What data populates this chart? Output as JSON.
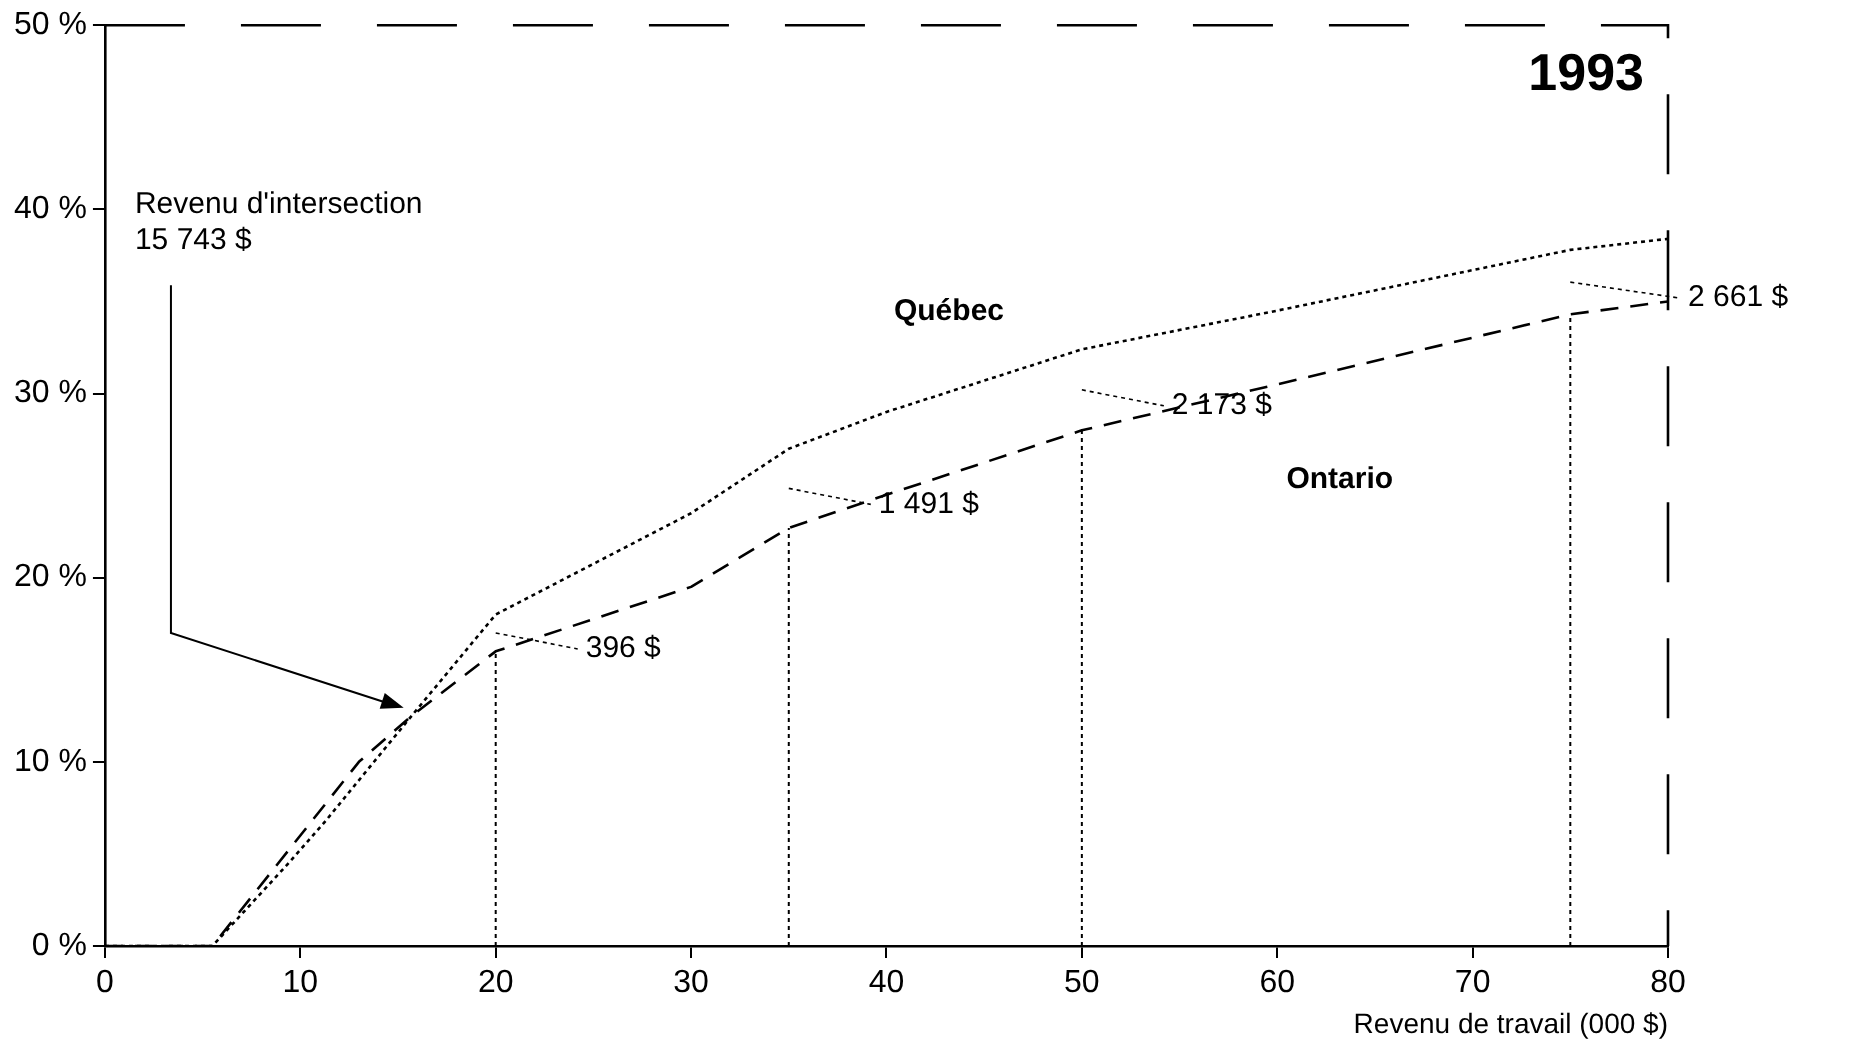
{
  "chart_data": {
    "type": "line",
    "title": "1993",
    "xlabel": "Revenu de travail (000 $)",
    "xlim": [
      0,
      80
    ],
    "xticks": [
      0,
      10,
      20,
      30,
      40,
      50,
      60,
      70,
      80
    ],
    "ylim": [
      0,
      50
    ],
    "yticks": [
      {
        "value": 0,
        "label": "0 %"
      },
      {
        "value": 10,
        "label": "10 %"
      },
      {
        "value": 20,
        "label": "20 %"
      },
      {
        "value": 30,
        "label": "30 %"
      },
      {
        "value": 40,
        "label": "40 %"
      },
      {
        "value": 50,
        "label": "50 %"
      }
    ],
    "grid": false,
    "legend": false,
    "marker": "none",
    "series": [
      {
        "name": "Québec",
        "color": "#000000",
        "line_style": "dotted",
        "x": [
          0,
          5.5,
          9.4,
          11.3,
          15.7,
          20,
          30,
          35,
          40,
          50,
          60,
          75,
          80
        ],
        "values": [
          0,
          0,
          4.5,
          6.8,
          12.5,
          18,
          23.5,
          27,
          29,
          32.4,
          34.5,
          37.8,
          38.4
        ]
      },
      {
        "name": "Ontario",
        "color": "#000000",
        "line_style": "dashed",
        "x": [
          0,
          5.5,
          10,
          13,
          15.7,
          20,
          30,
          35,
          40,
          50,
          60,
          75,
          80
        ],
        "values": [
          0,
          0,
          6,
          10,
          12.5,
          16,
          19.5,
          22.7,
          24.5,
          28,
          30.5,
          34.3,
          35
        ]
      }
    ],
    "ref_lines": [
      {
        "axis": "x",
        "value": 20,
        "line_style": "dotted"
      },
      {
        "axis": "x",
        "value": 35,
        "line_style": "dotted"
      },
      {
        "axis": "x",
        "value": 50,
        "line_style": "dotted"
      },
      {
        "axis": "x",
        "value": 75,
        "line_style": "dotted"
      }
    ],
    "annotations": [
      "Revenu d'intersection\n15 743 $",
      "396 $",
      "1 491 $",
      "2 173 $",
      "2 661 $"
    ]
  }
}
